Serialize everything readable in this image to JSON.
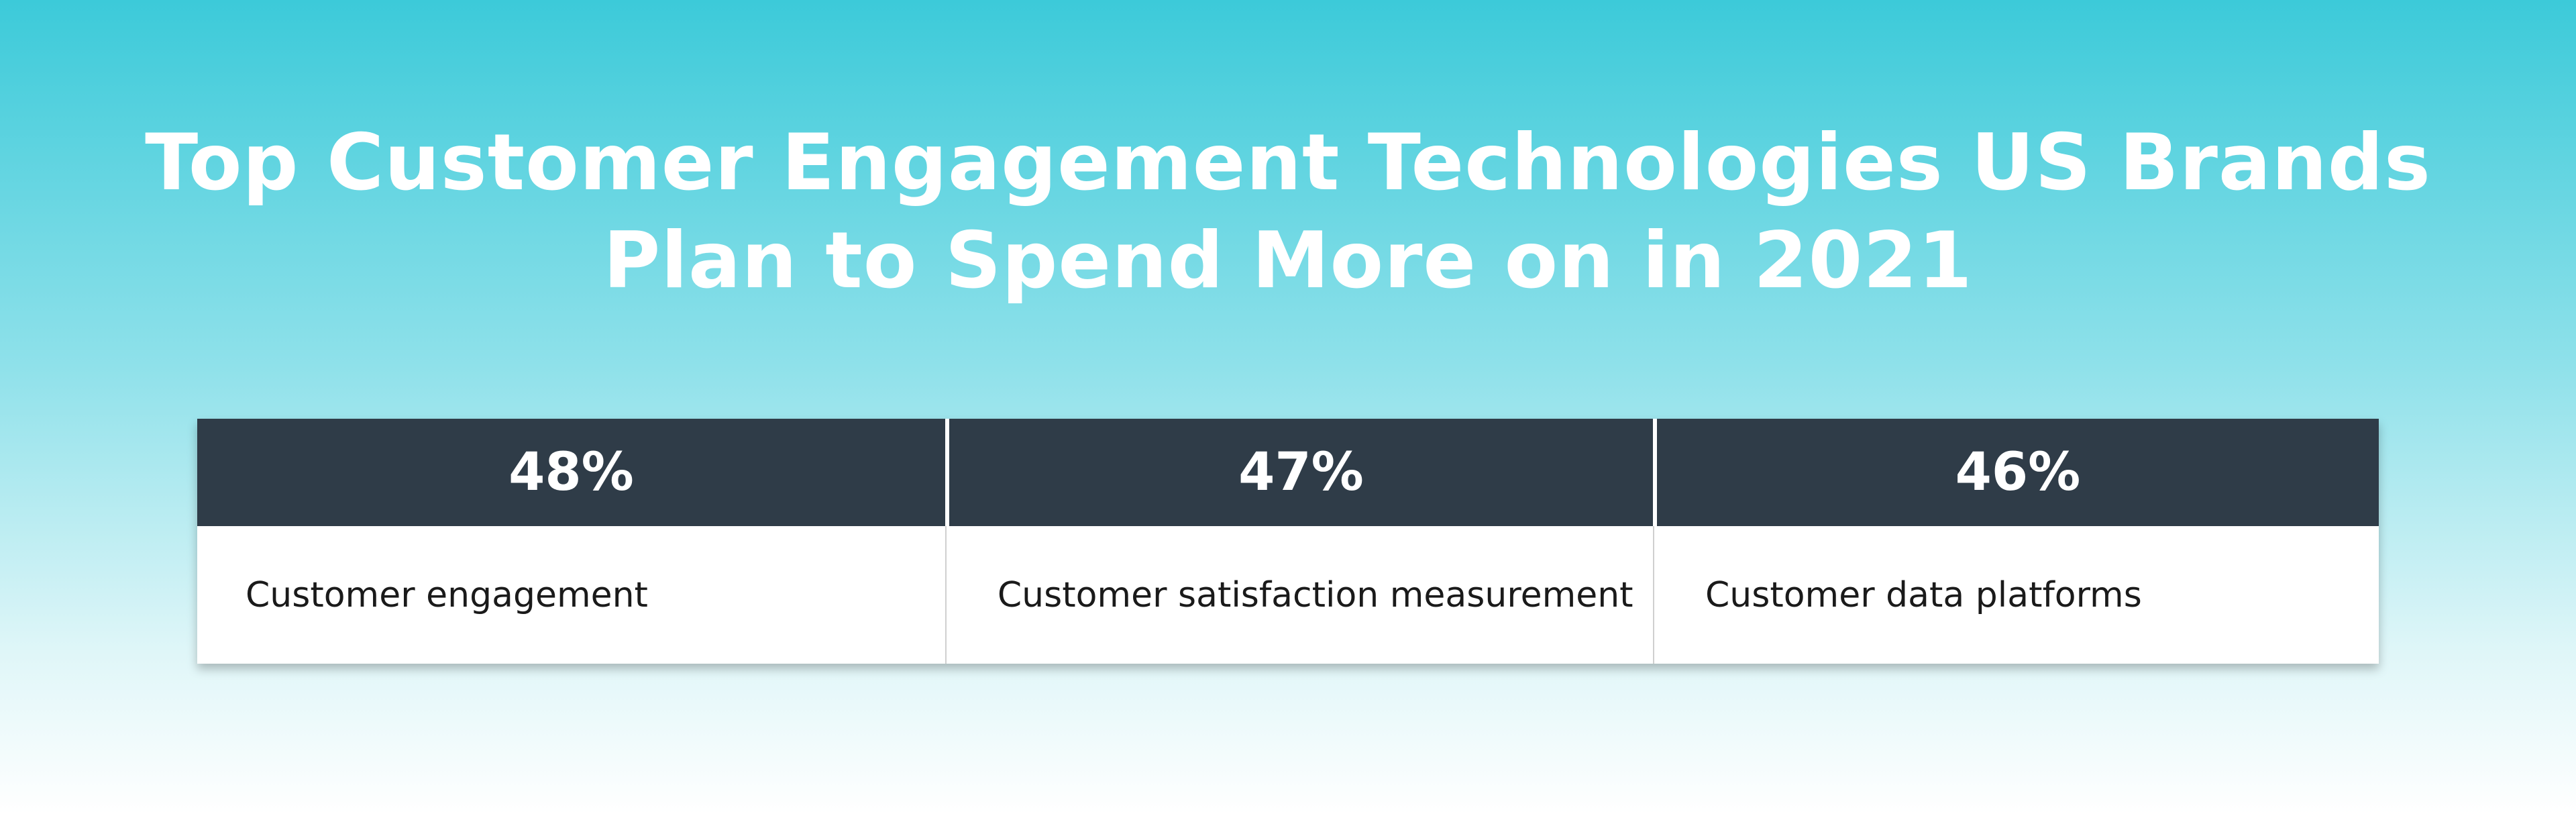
{
  "title": [
    "Top Customer Engagement Technologies US Brands",
    "Plan to Spend More on in 2021"
  ],
  "table": {
    "columns": [
      {
        "header": "48%",
        "label": "Customer engagement"
      },
      {
        "header": "47%",
        "label": "Customer satisfaction measurement"
      },
      {
        "header": "46%",
        "label": "Customer data platforms"
      }
    ]
  }
}
